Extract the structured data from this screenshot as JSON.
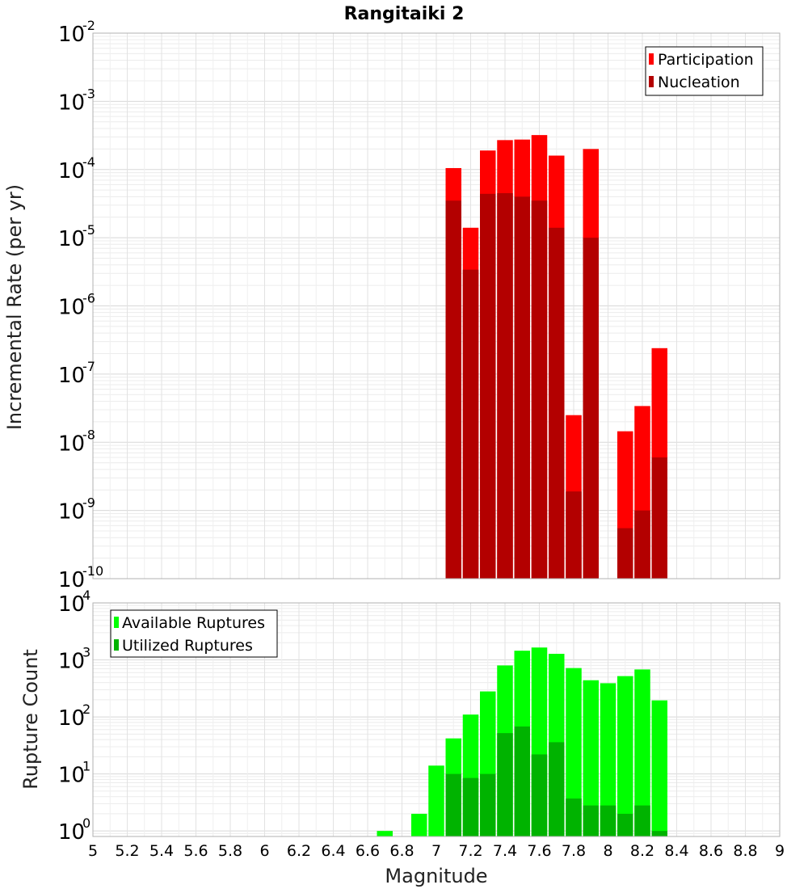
{
  "chart_data": [
    {
      "type": "bar",
      "title": "Rangitaiki 2",
      "xlabel": "",
      "ylabel": "Incremental Rate (per yr)",
      "yscale": "log",
      "ylim": [
        1e-10,
        0.01
      ],
      "xlim": [
        5,
        9
      ],
      "y_tick_base": "10",
      "y_tick_exponents": [
        "-10",
        "-9",
        "-8",
        "-7",
        "-6",
        "-5",
        "-4",
        "-3",
        "-2"
      ],
      "grid": true,
      "legend_position": "top-right",
      "x": [
        7.1,
        7.2,
        7.3,
        7.4,
        7.5,
        7.6,
        7.7,
        7.8,
        7.9,
        8.1,
        8.2,
        8.3
      ],
      "series": [
        {
          "name": "Participation",
          "color": "#ff0000",
          "values": [
            0.000105,
            1.4e-05,
            0.00019,
            0.00027,
            0.000275,
            0.00032,
            0.00016,
            2.5e-08,
            0.0002,
            1.45e-08,
            3.4e-08,
            2.4e-07
          ]
        },
        {
          "name": "Nucleation",
          "color": "#b30000",
          "values": [
            3.5e-05,
            3.4e-06,
            4.4e-05,
            4.5e-05,
            4e-05,
            3.5e-05,
            1.4e-05,
            1.9e-09,
            1e-05,
            5.5e-10,
            1e-09,
            6e-09
          ]
        }
      ]
    },
    {
      "type": "bar",
      "title": "",
      "xlabel": "Magnitude",
      "ylabel": "Rupture Count",
      "yscale": "log",
      "ylim": [
        0.8,
        10000
      ],
      "xlim": [
        5,
        9
      ],
      "x_ticks": [
        "5",
        "5.2",
        "5.4",
        "5.6",
        "5.8",
        "6",
        "6.2",
        "6.4",
        "6.6",
        "6.8",
        "7",
        "7.2",
        "7.4",
        "7.6",
        "7.8",
        "8",
        "8.2",
        "8.4",
        "8.6",
        "8.8",
        "9"
      ],
      "y_tick_base": "10",
      "y_tick_exponents": [
        "0",
        "1",
        "2",
        "3",
        "4"
      ],
      "grid": true,
      "legend_position": "top-left",
      "x": [
        6.7,
        6.9,
        7.0,
        7.1,
        7.2,
        7.3,
        7.4,
        7.5,
        7.6,
        7.7,
        7.8,
        7.9,
        8.0,
        8.1,
        8.2,
        8.3
      ],
      "series": [
        {
          "name": "Available Ruptures",
          "color": "#00ff00",
          "values": [
            1,
            2,
            14,
            42,
            110,
            280,
            800,
            1450,
            1650,
            1280,
            720,
            440,
            390,
            520,
            680,
            195
          ]
        },
        {
          "name": "Utilized Ruptures",
          "color": "#00b300",
          "values": [
            0,
            0,
            0,
            10,
            8.5,
            10,
            52,
            68,
            22,
            36,
            3.7,
            2.8,
            2.8,
            2,
            2.8,
            1
          ]
        }
      ]
    }
  ]
}
